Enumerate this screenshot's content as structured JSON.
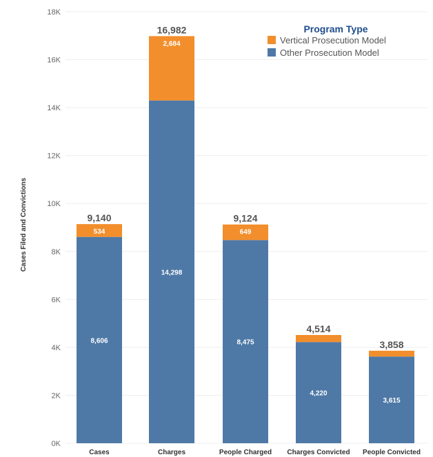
{
  "chart_data": {
    "type": "bar",
    "stacked": true,
    "title": "",
    "xlabel": "",
    "ylabel": "Cases Filed and Convictions",
    "ylim": [
      0,
      18000
    ],
    "yticks": [
      0,
      2000,
      4000,
      6000,
      8000,
      10000,
      12000,
      14000,
      16000,
      18000
    ],
    "ytick_labels": [
      "0K",
      "2K",
      "4K",
      "6K",
      "8K",
      "10K",
      "12K",
      "14K",
      "16K",
      "18K"
    ],
    "grid": true,
    "legend": {
      "title": "Program Type",
      "placement": "top-right",
      "entries": [
        "Vertical Prosecution Model",
        "Other Prosecution Model"
      ]
    },
    "categories": [
      "Cases",
      "Charges",
      "People Charged",
      "Charges Convicted",
      "People Convicted"
    ],
    "series": [
      {
        "name": "Other Prosecution Model",
        "color": "#4e79a7",
        "values": [
          8606,
          14298,
          8475,
          4220,
          3615
        ],
        "labels": [
          "8,606",
          "14,298",
          "8,475",
          "4,220",
          "3,615"
        ]
      },
      {
        "name": "Vertical Prosecution Model",
        "color": "#f28e2b",
        "values": [
          534,
          2684,
          649,
          294,
          243
        ],
        "labels": [
          "534",
          "2,684",
          "649",
          "",
          ""
        ]
      }
    ],
    "totals": [
      9140,
      16982,
      9124,
      4514,
      3858
    ],
    "total_labels": [
      "9,140",
      "16,982",
      "9,124",
      "4,514",
      "3,858"
    ]
  }
}
